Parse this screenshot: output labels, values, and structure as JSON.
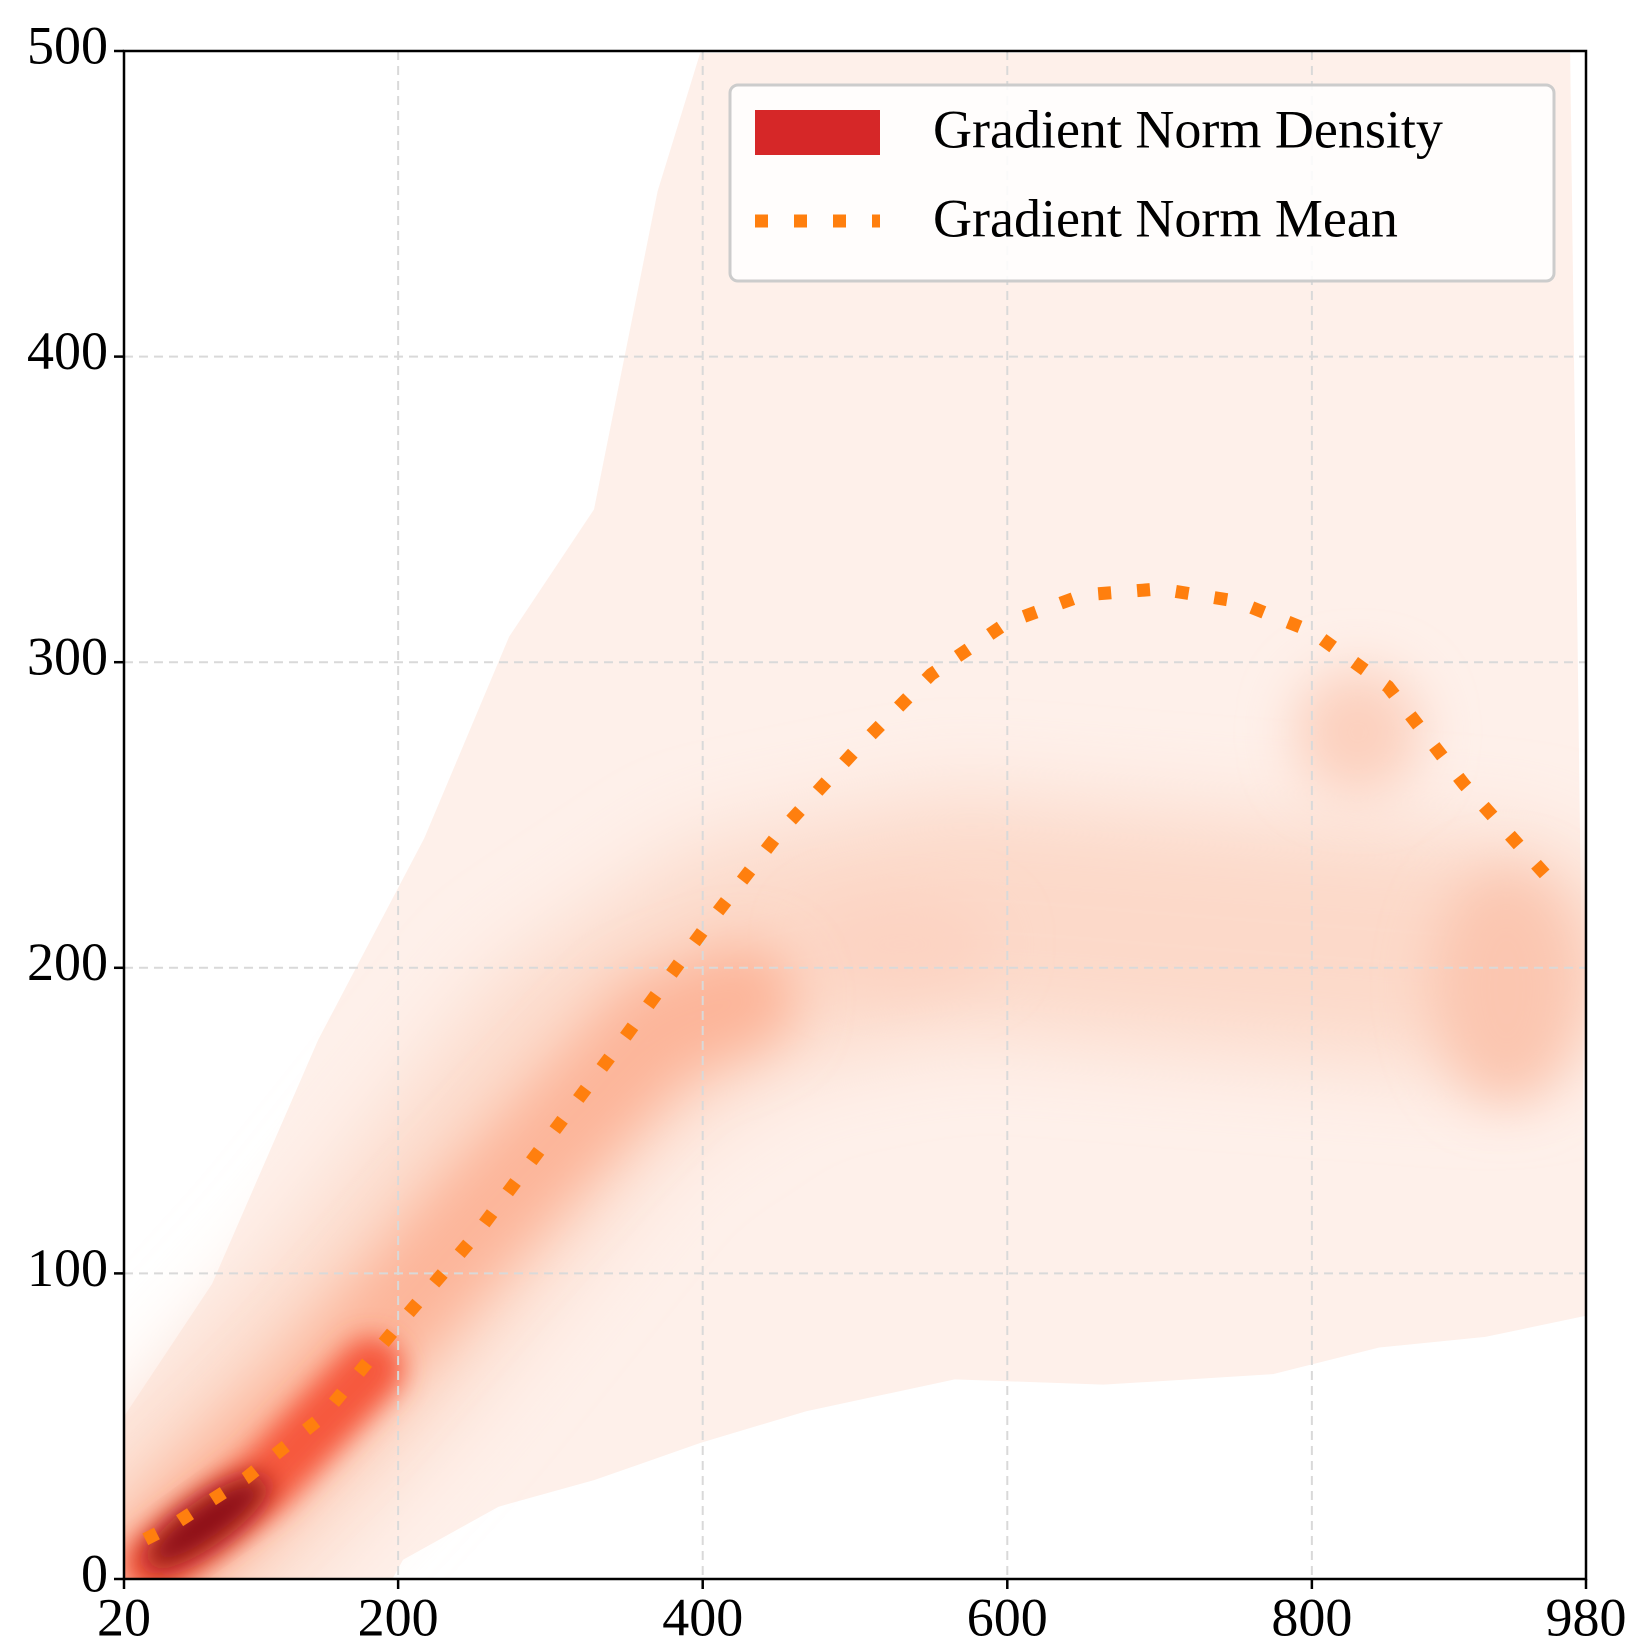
{
  "chart_data": {
    "type": "line",
    "x": [
      34,
      50,
      100,
      150,
      200,
      250,
      300,
      350,
      400,
      450,
      500,
      550,
      600,
      650,
      700,
      750,
      800,
      850,
      900,
      956
    ],
    "series": [
      {
        "name": "Gradient Norm Density",
        "color": "#d62728"
      },
      {
        "name": "Gradient Norm Mean",
        "color": "#ff7f0e",
        "values": [
          13,
          17,
          33,
          53,
          83,
          112,
          145,
          178,
          212,
          244,
          271,
          296,
          313,
          322,
          324,
          320,
          310,
          292,
          260,
          229
        ]
      }
    ],
    "xlim": [
      20,
      980
    ],
    "xticks": [
      20,
      200,
      400,
      600,
      800,
      980
    ],
    "ylim": [
      0,
      500
    ],
    "yticks": [
      0,
      100,
      200,
      300,
      400,
      500
    ],
    "grid": true,
    "legend": "upper right"
  }
}
